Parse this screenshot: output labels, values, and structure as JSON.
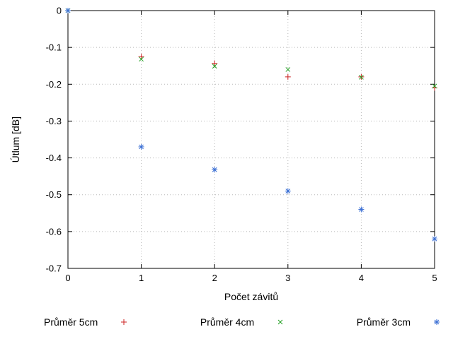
{
  "chart_data": {
    "type": "scatter",
    "title": "",
    "xlabel": "Počet závitů",
    "ylabel": "Útlum [dB]",
    "xlim": [
      0,
      5
    ],
    "ylim": [
      -0.7,
      0
    ],
    "grid": true,
    "legend_position": "bottom-center",
    "x_ticks": [
      0,
      1,
      2,
      3,
      4,
      5
    ],
    "x_tick_labels": [
      "0",
      "1",
      "2",
      "3",
      "4",
      "5"
    ],
    "y_ticks": [
      0,
      -0.1,
      -0.2,
      -0.3,
      -0.4,
      -0.5,
      -0.6,
      -0.7
    ],
    "y_tick_labels": [
      "0",
      "-0.1",
      "-0.2",
      "-0.3",
      "-0.4",
      "-0.5",
      "-0.6",
      "-0.7"
    ],
    "x": [
      0,
      1,
      2,
      3,
      4,
      5
    ],
    "series": [
      {
        "name": "Průměr 5cm",
        "marker": "plus",
        "color": "#cc2222",
        "values": [
          0,
          -0.125,
          -0.143,
          -0.18,
          -0.18,
          -0.21
        ]
      },
      {
        "name": "Průměr 4cm",
        "marker": "cross",
        "color": "#22a022",
        "values": [
          0,
          -0.132,
          -0.151,
          -0.16,
          -0.181,
          -0.205
        ]
      },
      {
        "name": "Průměr 3cm",
        "marker": "asterisk",
        "color": "#3b6fd4",
        "values": [
          0,
          -0.37,
          -0.432,
          -0.49,
          -0.54,
          -0.62
        ]
      }
    ],
    "colors": {
      "grid": "#b8b8b8",
      "border": "#000000",
      "background": "#ffffff"
    }
  }
}
